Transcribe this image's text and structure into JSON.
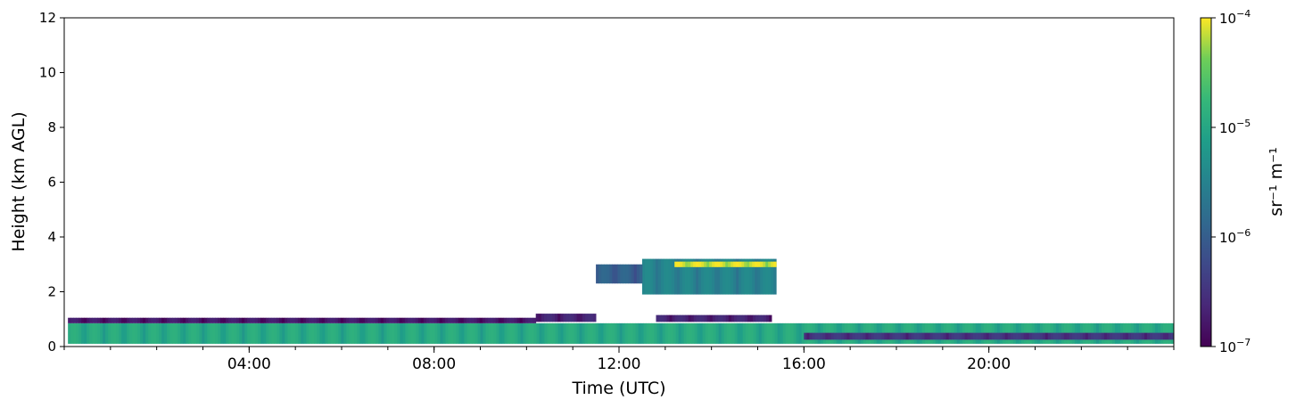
{
  "chart_data": {
    "type": "heatmap",
    "xlabel": "Time (UTC)",
    "ylabel": "Height (km AGL)",
    "x_range_hours": [
      0,
      24
    ],
    "ylim": [
      0,
      12
    ],
    "y_ticks": [
      "0",
      "2",
      "4",
      "6",
      "8",
      "10",
      "12"
    ],
    "x_ticks": [
      {
        "hour": 4,
        "label": "04:00"
      },
      {
        "hour": 8,
        "label": "08:00"
      },
      {
        "hour": 12,
        "label": "12:00"
      },
      {
        "hour": 16,
        "label": "16:00"
      },
      {
        "hour": 20,
        "label": "20:00"
      }
    ],
    "x_minor_step_hours": 1,
    "colorbar": {
      "label": "sr⁻¹ m⁻¹",
      "scale": "log",
      "range": [
        1e-07,
        0.0001
      ],
      "colormap": "viridis",
      "tick_labels": [
        {
          "value": 1e-07,
          "base": "10",
          "exp": "−7"
        },
        {
          "value": 1e-06,
          "base": "10",
          "exp": "−6"
        },
        {
          "value": 1e-05,
          "base": "10",
          "exp": "−5"
        },
        {
          "value": 0.0001,
          "base": "10",
          "exp": "−4"
        }
      ]
    },
    "features": [
      {
        "name": "boundary-layer",
        "t_start": 0.08,
        "t_end": 24,
        "z_bottom": 0.1,
        "z_top": 0.85,
        "value": 1e-05
      },
      {
        "name": "boundary-layer-top-edge",
        "t_start": 0.08,
        "t_end": 10.2,
        "z_bottom": 0.85,
        "z_top": 1.05,
        "value": 1.5e-07
      },
      {
        "name": "elevated-aerosol-1",
        "t_start": 10.2,
        "t_end": 11.5,
        "z_bottom": 0.9,
        "z_top": 1.2,
        "value": 2e-07
      },
      {
        "name": "elevated-aerosol-2",
        "t_start": 12.8,
        "t_end": 15.3,
        "z_bottom": 0.9,
        "z_top": 1.15,
        "value": 2e-07
      },
      {
        "name": "mid-level-cloud",
        "t_start": 12.5,
        "t_end": 15.4,
        "z_bottom": 1.9,
        "z_top": 3.2,
        "value": 3e-06
      },
      {
        "name": "mid-level-cloud-base-bright",
        "t_start": 13.2,
        "t_end": 15.4,
        "z_bottom": 2.9,
        "z_top": 3.1,
        "value": 7e-05
      },
      {
        "name": "cloud-fragments",
        "t_start": 11.5,
        "t_end": 12.5,
        "z_bottom": 2.3,
        "z_top": 3.0,
        "value": 1e-06
      },
      {
        "name": "shallow-layer-evening",
        "t_start": 16.0,
        "t_end": 24,
        "z_bottom": 0.25,
        "z_top": 0.5,
        "value": 3e-07
      }
    ]
  }
}
